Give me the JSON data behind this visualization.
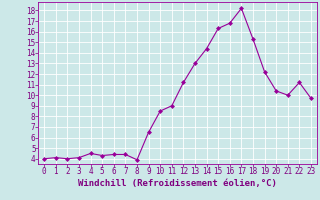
{
  "x": [
    0,
    1,
    2,
    3,
    4,
    5,
    6,
    7,
    8,
    9,
    10,
    11,
    12,
    13,
    14,
    15,
    16,
    17,
    18,
    19,
    20,
    21,
    22,
    23
  ],
  "y": [
    4.0,
    4.1,
    4.0,
    4.1,
    4.5,
    4.3,
    4.4,
    4.4,
    3.9,
    6.5,
    8.5,
    9.0,
    11.2,
    13.0,
    14.4,
    16.3,
    16.8,
    18.2,
    15.3,
    12.2,
    10.4,
    10.0,
    11.2,
    9.7
  ],
  "line_color": "#990099",
  "marker": "D",
  "marker_size": 2.0,
  "line_width": 0.8,
  "bg_color": "#cce8e8",
  "grid_color": "#b0d4d4",
  "xlabel": "Windchill (Refroidissement éolien,°C)",
  "xlabel_color": "#800080",
  "tick_color": "#800080",
  "xlim": [
    -0.5,
    23.5
  ],
  "ylim": [
    3.5,
    18.8
  ],
  "yticks": [
    4,
    5,
    6,
    7,
    8,
    9,
    10,
    11,
    12,
    13,
    14,
    15,
    16,
    17,
    18
  ],
  "xticks": [
    0,
    1,
    2,
    3,
    4,
    5,
    6,
    7,
    8,
    9,
    10,
    11,
    12,
    13,
    14,
    15,
    16,
    17,
    18,
    19,
    20,
    21,
    22,
    23
  ],
  "xlabel_fontsize": 6.5,
  "tick_fontsize": 5.5
}
